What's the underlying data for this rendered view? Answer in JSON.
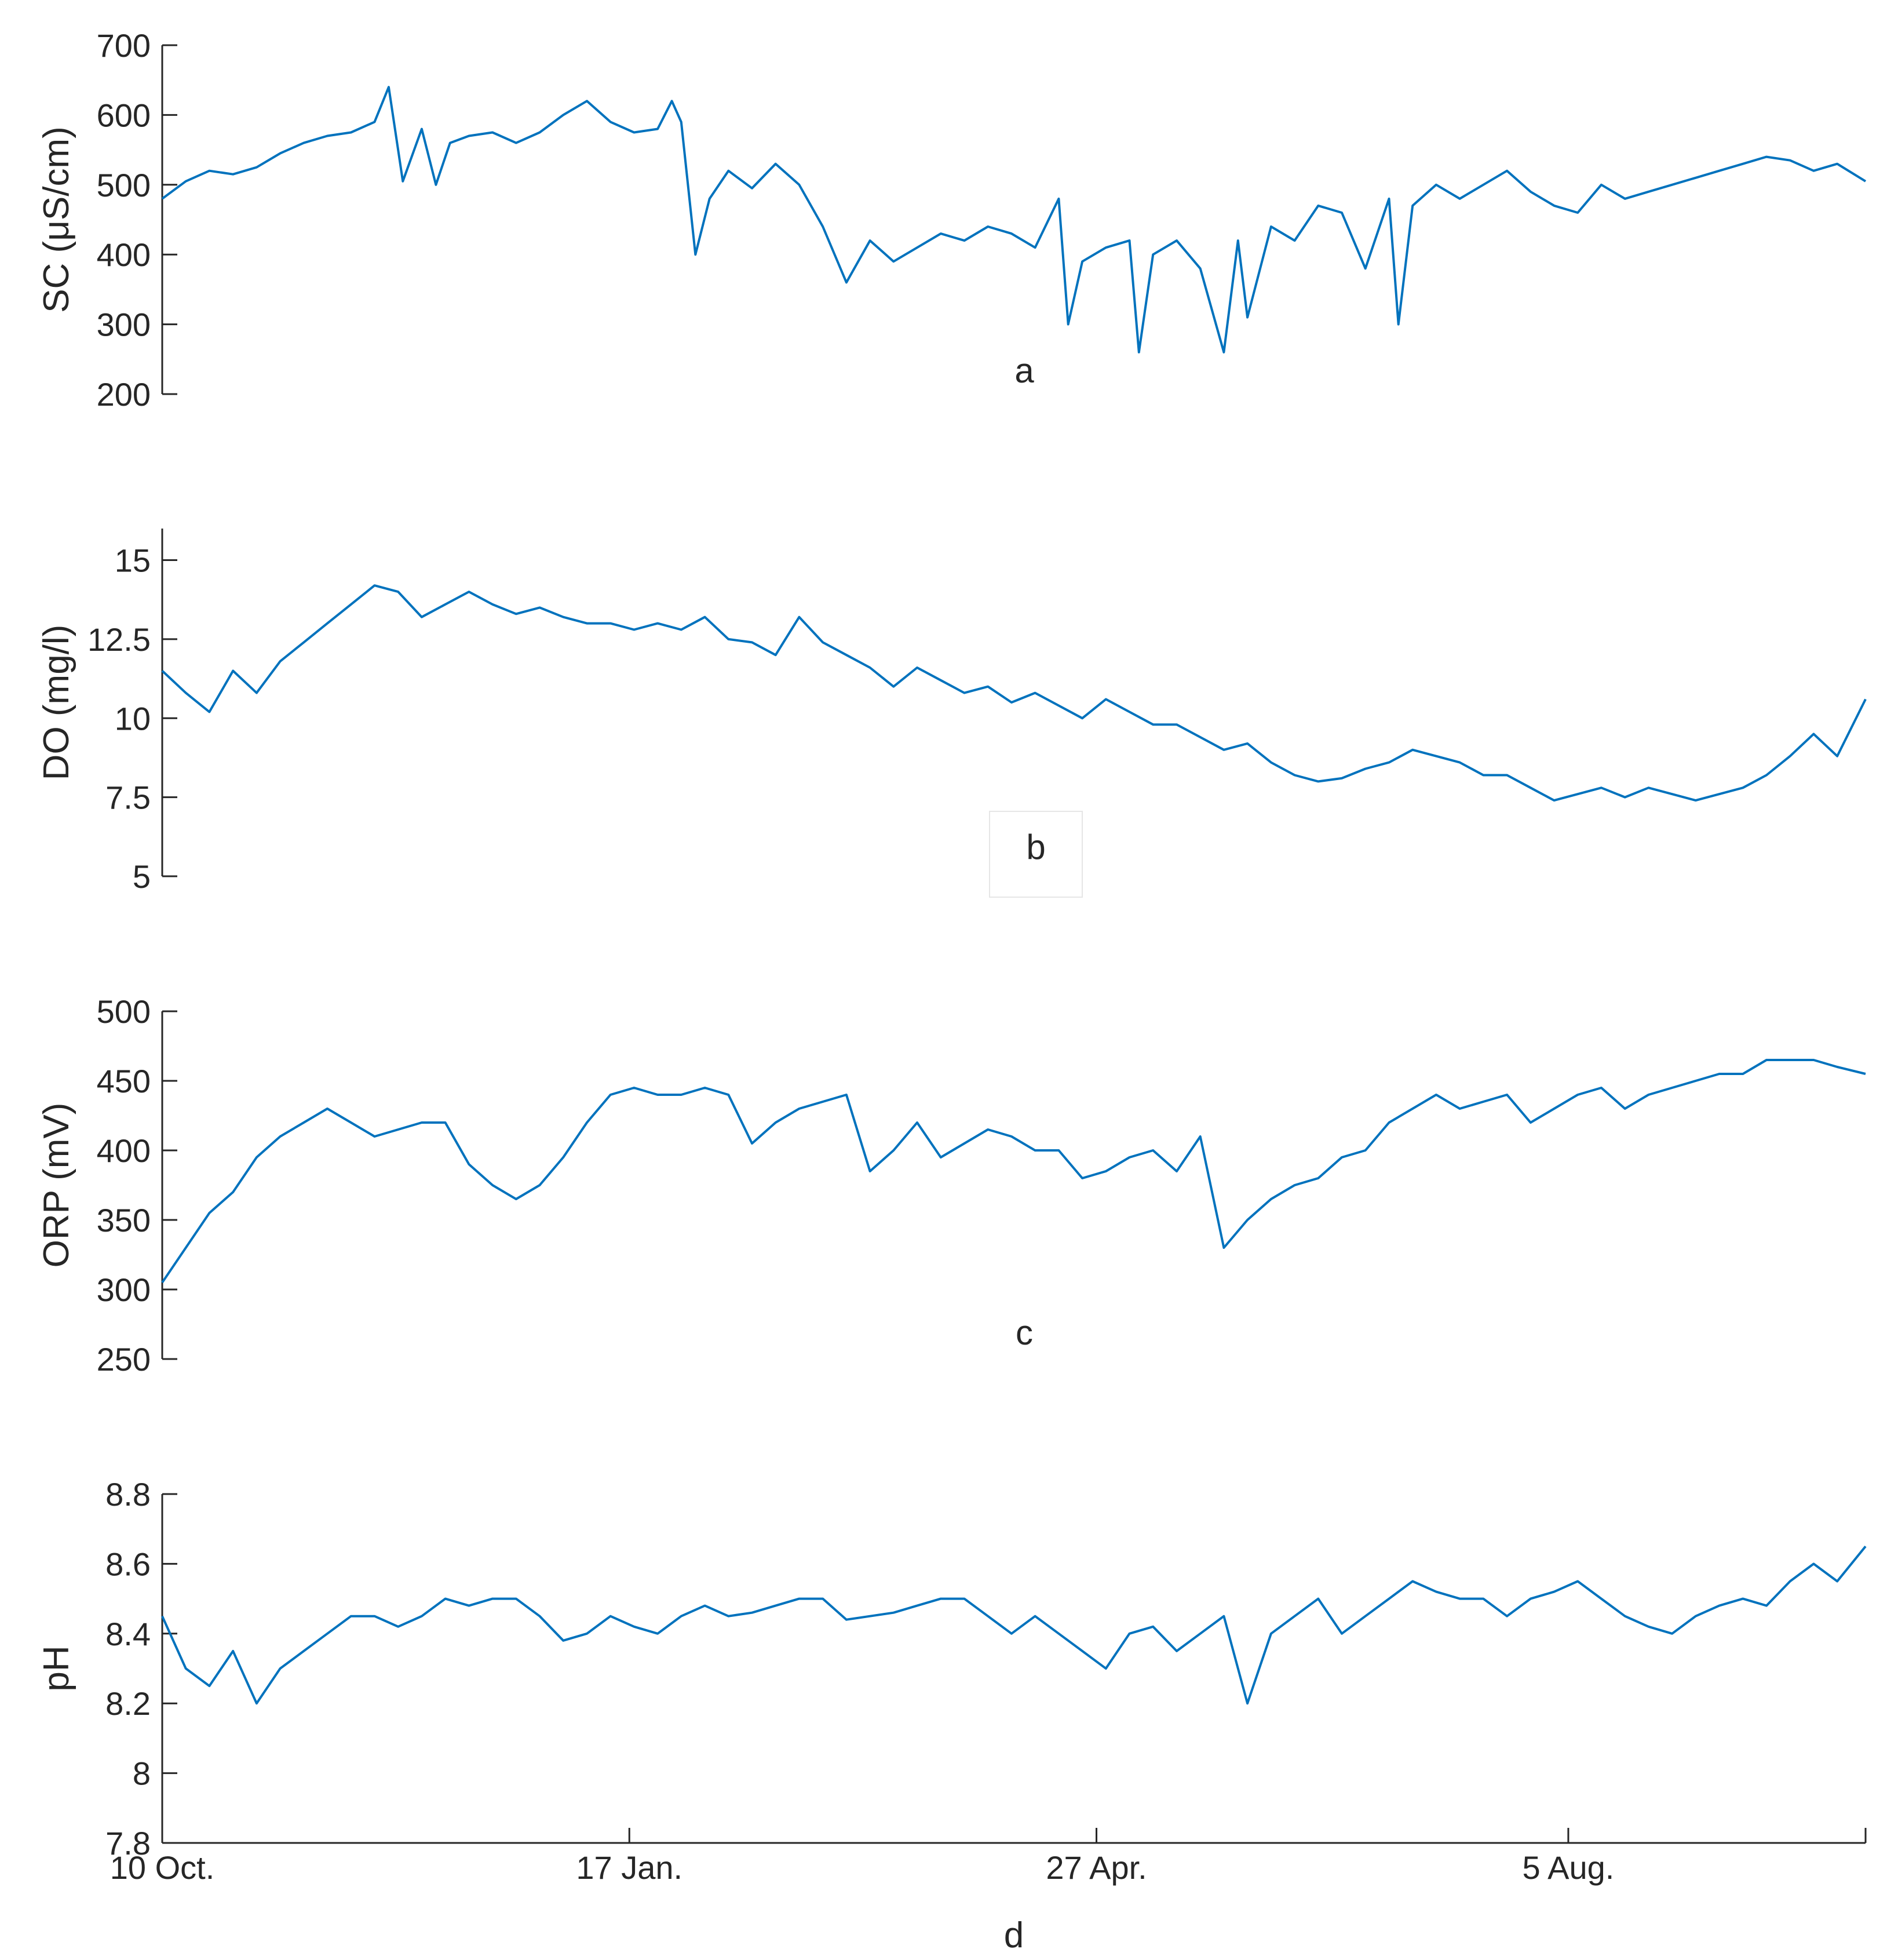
{
  "x_axis": {
    "ticks": [
      {
        "label": "10 Oct.",
        "day": 0
      },
      {
        "label": "17 Jan.",
        "day": 99
      },
      {
        "label": "27 Apr.",
        "day": 198
      },
      {
        "label": "5 Aug.",
        "day": 298
      }
    ],
    "range_days": [
      0,
      361
    ],
    "xlabel": "d"
  },
  "chart_data": [
    {
      "type": "line",
      "panel_label": "a",
      "ylabel": "SC (μS/cm)",
      "ylim": [
        200,
        700
      ],
      "yticks": [
        200,
        300,
        400,
        500,
        600,
        700
      ],
      "ytick_labels": [
        "200",
        "300",
        "400",
        "500",
        "600",
        "700"
      ],
      "x_units": "days since 10 Oct.",
      "x": [
        0,
        5,
        10,
        15,
        20,
        25,
        30,
        35,
        40,
        45,
        48,
        51,
        55,
        58,
        61,
        65,
        70,
        75,
        80,
        85,
        90,
        95,
        100,
        105,
        108,
        110,
        113,
        116,
        120,
        125,
        130,
        135,
        140,
        145,
        150,
        155,
        160,
        165,
        170,
        175,
        180,
        185,
        190,
        192,
        195,
        200,
        205,
        207,
        210,
        215,
        220,
        225,
        228,
        230,
        235,
        240,
        245,
        250,
        255,
        260,
        262,
        265,
        270,
        275,
        280,
        285,
        290,
        295,
        300,
        305,
        310,
        315,
        320,
        325,
        330,
        335,
        340,
        345,
        350,
        355,
        361
      ],
      "y": [
        480,
        505,
        520,
        515,
        525,
        545,
        560,
        570,
        575,
        590,
        640,
        505,
        580,
        500,
        560,
        570,
        575,
        560,
        575,
        600,
        620,
        590,
        575,
        580,
        620,
        590,
        400,
        480,
        520,
        495,
        530,
        500,
        440,
        360,
        420,
        390,
        410,
        430,
        420,
        440,
        430,
        410,
        480,
        300,
        390,
        410,
        420,
        260,
        400,
        420,
        380,
        260,
        420,
        310,
        440,
        420,
        470,
        460,
        380,
        480,
        300,
        470,
        500,
        480,
        500,
        520,
        490,
        470,
        460,
        500,
        480,
        490,
        500,
        510,
        520,
        530,
        540,
        535,
        520,
        530,
        505
      ]
    },
    {
      "type": "line",
      "panel_label": "b",
      "ylabel": "DO (mg/l)",
      "ylim": [
        5,
        16
      ],
      "yticks": [
        5,
        7.5,
        10,
        12.5,
        15
      ],
      "ytick_labels": [
        "5",
        "7.5",
        "10",
        "12.5",
        "15"
      ],
      "x_units": "days since 10 Oct.",
      "x": [
        0,
        5,
        10,
        15,
        20,
        25,
        30,
        35,
        40,
        45,
        50,
        55,
        60,
        65,
        70,
        75,
        80,
        85,
        90,
        95,
        100,
        105,
        110,
        115,
        120,
        125,
        130,
        135,
        140,
        145,
        150,
        155,
        160,
        165,
        170,
        175,
        180,
        185,
        190,
        195,
        200,
        205,
        210,
        215,
        220,
        225,
        230,
        235,
        240,
        245,
        250,
        255,
        260,
        265,
        270,
        275,
        280,
        285,
        290,
        295,
        300,
        305,
        310,
        315,
        320,
        325,
        330,
        335,
        340,
        345,
        350,
        355,
        361
      ],
      "y": [
        11.5,
        10.8,
        10.2,
        11.5,
        10.8,
        11.8,
        12.4,
        13.0,
        13.6,
        14.2,
        14.0,
        13.2,
        13.6,
        14.0,
        13.6,
        13.3,
        13.5,
        13.2,
        13.0,
        13.0,
        12.8,
        13.0,
        12.8,
        13.2,
        12.5,
        12.4,
        12.0,
        13.2,
        12.4,
        12.0,
        11.6,
        11.0,
        11.6,
        11.2,
        10.8,
        11.0,
        10.5,
        10.8,
        10.4,
        10.0,
        10.6,
        10.2,
        9.8,
        9.8,
        9.4,
        9.0,
        9.2,
        8.6,
        8.2,
        8.0,
        8.1,
        8.4,
        8.6,
        9.0,
        8.8,
        8.6,
        8.2,
        8.2,
        7.8,
        7.4,
        7.6,
        7.8,
        7.5,
        7.8,
        7.6,
        7.4,
        7.6,
        7.8,
        8.2,
        8.8,
        9.5,
        8.8,
        10.6
      ]
    },
    {
      "type": "line",
      "panel_label": "c",
      "ylabel": "ORP (mV)",
      "ylim": [
        250,
        500
      ],
      "yticks": [
        250,
        300,
        350,
        400,
        450,
        500
      ],
      "ytick_labels": [
        "250",
        "300",
        "350",
        "400",
        "450",
        "500"
      ],
      "x_units": "days since 10 Oct.",
      "x": [
        0,
        5,
        10,
        15,
        20,
        25,
        30,
        35,
        40,
        45,
        50,
        55,
        60,
        65,
        70,
        75,
        80,
        85,
        90,
        95,
        100,
        105,
        110,
        115,
        120,
        125,
        130,
        135,
        140,
        145,
        150,
        155,
        160,
        165,
        170,
        175,
        180,
        185,
        190,
        195,
        200,
        205,
        210,
        215,
        220,
        225,
        230,
        235,
        240,
        245,
        250,
        255,
        260,
        265,
        270,
        275,
        280,
        285,
        290,
        295,
        300,
        305,
        310,
        315,
        320,
        325,
        330,
        335,
        340,
        345,
        350,
        355,
        361
      ],
      "y": [
        305,
        330,
        355,
        370,
        395,
        410,
        420,
        430,
        420,
        410,
        415,
        420,
        420,
        390,
        375,
        365,
        375,
        395,
        420,
        440,
        445,
        440,
        440,
        445,
        440,
        405,
        420,
        430,
        435,
        440,
        385,
        400,
        420,
        395,
        405,
        415,
        410,
        400,
        400,
        380,
        385,
        395,
        400,
        385,
        410,
        330,
        350,
        365,
        375,
        380,
        395,
        400,
        420,
        430,
        440,
        430,
        435,
        440,
        420,
        430,
        440,
        445,
        430,
        440,
        445,
        450,
        455,
        455,
        465,
        465,
        465,
        460,
        455
      ]
    },
    {
      "type": "line",
      "panel_label": "",
      "ylabel": "pH",
      "ylim": [
        7.8,
        8.8
      ],
      "yticks": [
        7.8,
        8,
        8.2,
        8.4,
        8.6,
        8.8
      ],
      "ytick_labels": [
        "7.8",
        "8",
        "8.2",
        "8.4",
        "8.6",
        "8.8"
      ],
      "x_units": "days since 10 Oct.",
      "x": [
        0,
        5,
        10,
        15,
        20,
        25,
        30,
        35,
        40,
        45,
        50,
        55,
        60,
        65,
        70,
        75,
        80,
        85,
        90,
        95,
        100,
        105,
        110,
        115,
        120,
        125,
        130,
        135,
        140,
        145,
        150,
        155,
        160,
        165,
        170,
        175,
        180,
        185,
        190,
        195,
        200,
        205,
        210,
        215,
        220,
        225,
        230,
        235,
        240,
        245,
        250,
        255,
        260,
        265,
        270,
        275,
        280,
        285,
        290,
        295,
        300,
        305,
        310,
        315,
        320,
        325,
        330,
        335,
        340,
        345,
        350,
        355,
        361
      ],
      "y": [
        8.45,
        8.3,
        8.25,
        8.35,
        8.2,
        8.3,
        8.35,
        8.4,
        8.45,
        8.45,
        8.42,
        8.45,
        8.5,
        8.48,
        8.5,
        8.5,
        8.45,
        8.38,
        8.4,
        8.45,
        8.42,
        8.4,
        8.45,
        8.48,
        8.45,
        8.46,
        8.48,
        8.5,
        8.5,
        8.44,
        8.45,
        8.46,
        8.48,
        8.5,
        8.5,
        8.45,
        8.4,
        8.45,
        8.4,
        8.35,
        8.3,
        8.4,
        8.42,
        8.35,
        8.4,
        8.45,
        8.2,
        8.4,
        8.45,
        8.5,
        8.4,
        8.45,
        8.5,
        8.55,
        8.52,
        8.5,
        8.5,
        8.45,
        8.5,
        8.52,
        8.55,
        8.5,
        8.45,
        8.42,
        8.4,
        8.45,
        8.48,
        8.5,
        8.48,
        8.55,
        8.6,
        8.55,
        8.65
      ]
    }
  ]
}
